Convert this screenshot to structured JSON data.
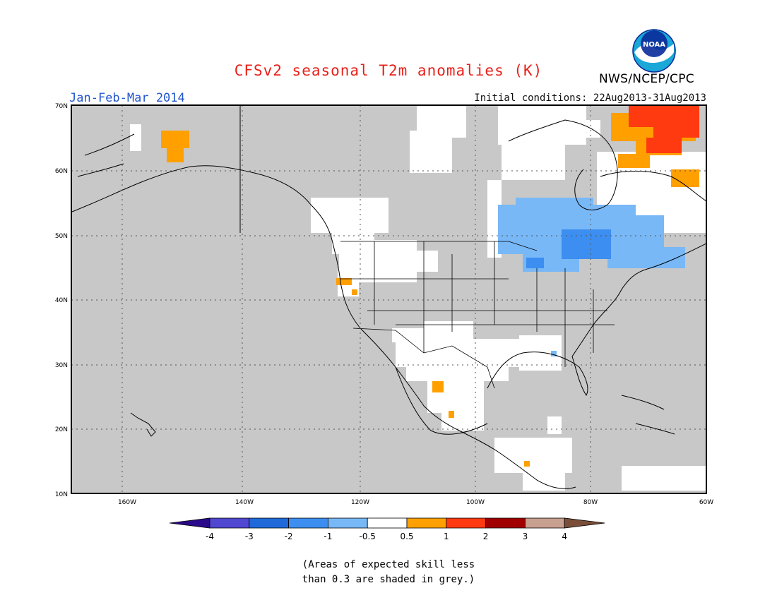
{
  "title": "CFSv2 seasonal T2m anomalies (K)",
  "period": "Jan-Feb-Mar 2014",
  "initial_conditions": "Initial conditions: 22Aug2013-31Aug2013",
  "agency": "NWS/NCEP/CPC",
  "logo_text": "NOAA",
  "lat_labels": [
    "70N",
    "60N",
    "50N",
    "40N",
    "30N",
    "20N",
    "10N"
  ],
  "lon_labels": [
    "160W",
    "140W",
    "120W",
    "100W",
    "80W",
    "60W"
  ],
  "colorbar": {
    "ticks": [
      "-4",
      "-3",
      "-2",
      "-1",
      "-0.5",
      "0.5",
      "1",
      "2",
      "3",
      "4"
    ],
    "colors": [
      "#2a0a8a",
      "#5048d0",
      "#1f6ad8",
      "#3c8ef0",
      "#78b8f7",
      "#ffffff",
      "#ffa000",
      "#ff3a10",
      "#a00000",
      "#c8a090",
      "#7a4e38"
    ]
  },
  "skill_note": [
    "(Areas of expected skill less",
    "than 0.3 are shaded in grey.)"
  ],
  "colors": {
    "grey_low_skill": "#c8c8c8",
    "title": "#e8201a",
    "period": "#2255cc"
  }
}
